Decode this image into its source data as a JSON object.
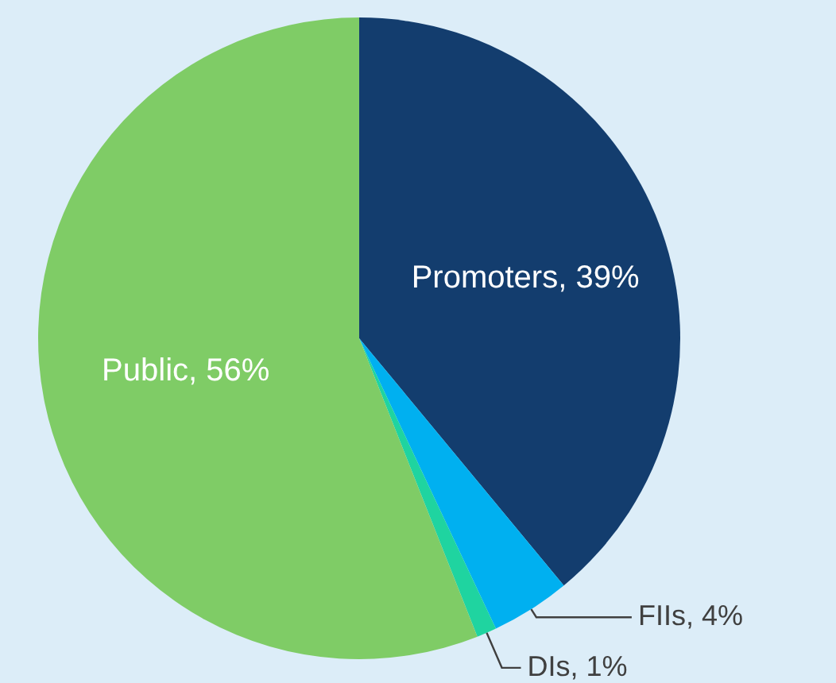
{
  "chart_data": {
    "type": "pie",
    "categories": [
      "Promoters",
      "FIIs",
      "DIs",
      "Public"
    ],
    "values": [
      39,
      4,
      1,
      56
    ],
    "colors": [
      "#133d6e",
      "#00b0f0",
      "#1fd4a0",
      "#7fcc66"
    ],
    "value_labels": [
      "39%",
      "4%",
      "1%",
      "56%"
    ],
    "legend": false
  }
}
